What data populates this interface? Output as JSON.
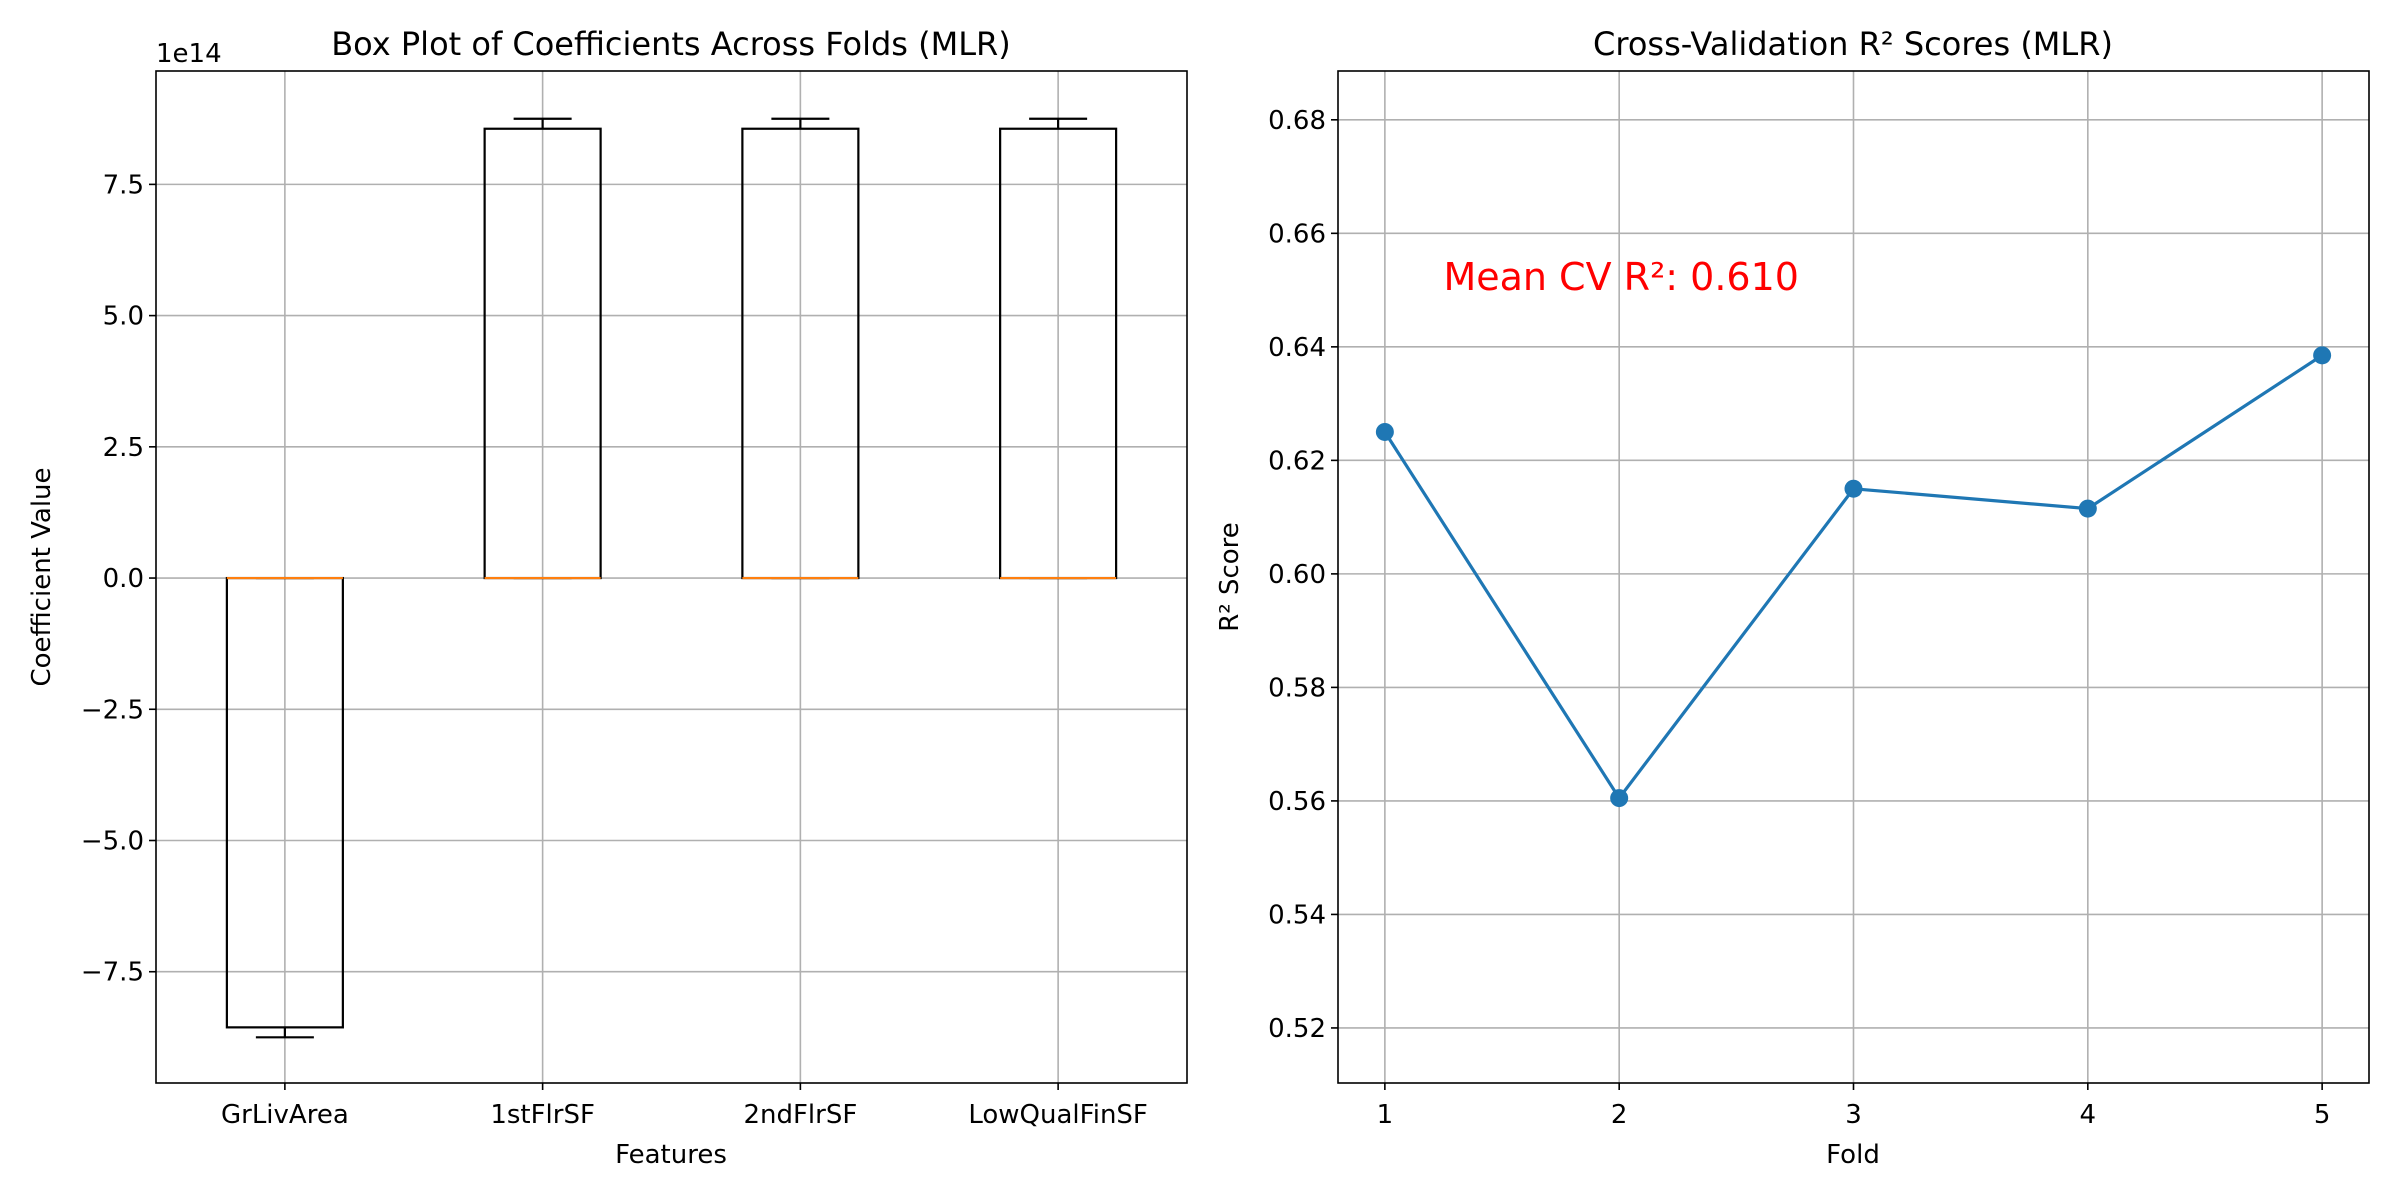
{
  "chart_data": [
    {
      "type": "box",
      "title": "Box Plot of Coefficients Across Folds (MLR)",
      "xlabel": "Features",
      "ylabel": "Coefficient Value",
      "y_offset_label": "1e14",
      "categories": [
        "GrLivArea",
        "1stFlrSF",
        "2ndFlrSF",
        "LowQualFinSF"
      ],
      "boxes": [
        {
          "whisker_low": -875000000000000.0,
          "q1": -856000000000000.0,
          "median": 0,
          "q3": 0,
          "whisker_high": 0
        },
        {
          "whisker_low": 0,
          "q1": 0,
          "median": 0,
          "q3": 856000000000000.0,
          "whisker_high": 875000000000000.0
        },
        {
          "whisker_low": 0,
          "q1": 0,
          "median": 0,
          "q3": 856000000000000.0,
          "whisker_high": 875000000000000.0
        },
        {
          "whisker_low": 0,
          "q1": 0,
          "median": 0,
          "q3": 856000000000000.0,
          "whisker_high": 875000000000000.0
        }
      ],
      "yticks": [
        -7.5,
        -5.0,
        -2.5,
        0.0,
        2.5,
        5.0,
        7.5
      ],
      "ytick_labels": [
        "−7.5",
        "−5.0",
        "−2.5",
        "0.0",
        "2.5",
        "5.0",
        "7.5"
      ],
      "ylim": [
        -962000000000000.0,
        966000000000000.0
      ],
      "grid": true,
      "colors": {
        "box": "#000000",
        "median": "#ff7f0e"
      }
    },
    {
      "type": "line",
      "title": "Cross-Validation R² Scores (MLR)",
      "xlabel": "Fold",
      "ylabel": "R² Score",
      "x": [
        1,
        2,
        3,
        4,
        5
      ],
      "y": [
        0.625,
        0.5605,
        0.615,
        0.6115,
        0.6385
      ],
      "xticks": [
        1,
        2,
        3,
        4,
        5
      ],
      "yticks": [
        0.52,
        0.54,
        0.56,
        0.58,
        0.6,
        0.62,
        0.64,
        0.66,
        0.68
      ],
      "ytick_labels": [
        "0.52",
        "0.54",
        "0.56",
        "0.58",
        "0.60",
        "0.62",
        "0.64",
        "0.66",
        "0.68"
      ],
      "xlim": [
        0.8,
        5.2
      ],
      "ylim": [
        0.5103,
        0.6886
      ],
      "grid": true,
      "marker": "circle",
      "colors": {
        "line": "#1f77b4",
        "annotation": "#ff0000"
      },
      "annotation": {
        "text": "Mean CV R²: 0.610",
        "x": 1.25,
        "y": 0.65
      }
    }
  ]
}
